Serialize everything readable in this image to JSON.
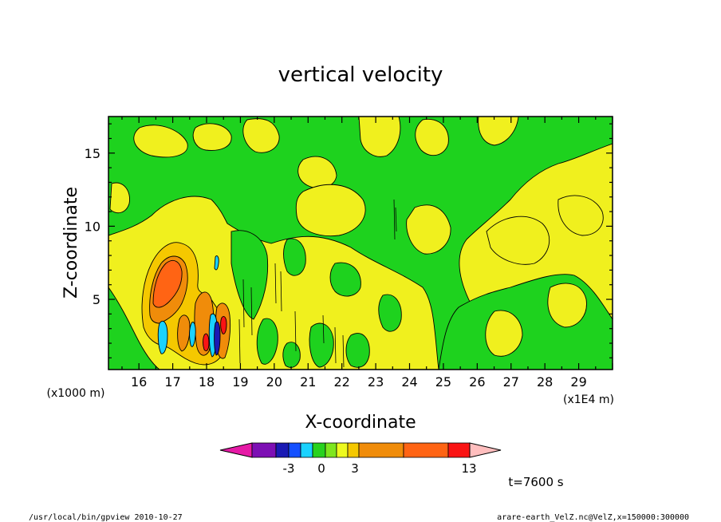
{
  "chart_data": {
    "type": "heatmap",
    "title": "vertical velocity",
    "xlabel": "X-coordinate",
    "ylabel": "Z-coordinate",
    "x_units_label": "(x1E4 m)",
    "y_units_label": "(x1000 m)",
    "xlim": [
      15.1,
      30.0
    ],
    "ylim": [
      0.2,
      17.5
    ],
    "x_ticks": [
      "16",
      "17",
      "18",
      "19",
      "20",
      "21",
      "22",
      "23",
      "24",
      "25",
      "26",
      "27",
      "28",
      "29"
    ],
    "y_ticks": [
      "5",
      "10",
      "15"
    ],
    "x_tick_values": [
      16,
      17,
      18,
      19,
      20,
      21,
      22,
      23,
      24,
      25,
      26,
      27,
      28,
      29
    ],
    "y_tick_values": [
      5,
      10,
      15
    ],
    "colorbar": {
      "tick_labels": [
        "-3",
        "0",
        "3",
        "13"
      ],
      "colors": [
        "#e61aa6",
        "#7d0fb4",
        "#1a1ab4",
        "#1450ff",
        "#1ad2ff",
        "#28d21e",
        "#7ee61e",
        "#eefa1e",
        "#f5c800",
        "#f08c0a",
        "#ff6414",
        "#fa1414",
        "#ff8282",
        "#ffbebe"
      ]
    },
    "time_label": "t=7600 s",
    "footer_left": "/usr/local/bin/gpview   2010-10-27",
    "footer_right": "arare-earth_VelZ.nc@VelZ,x=150000:300000",
    "colors": {
      "background": "#e8e800",
      "green": "#1ed21e",
      "yellow": "#f0f01e"
    }
  }
}
